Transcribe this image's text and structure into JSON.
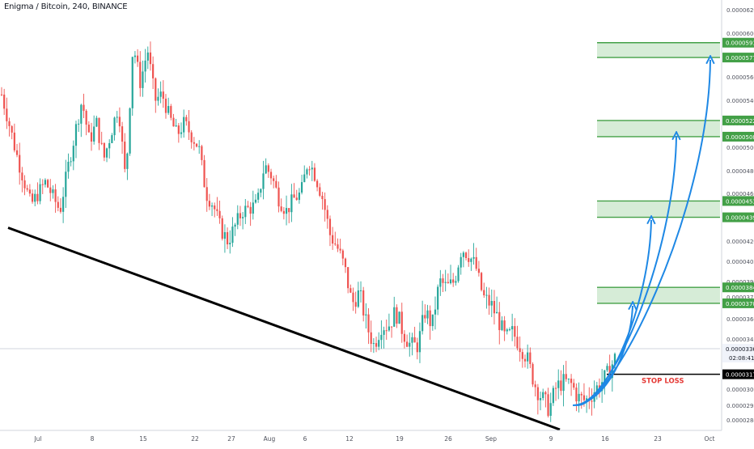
{
  "colors": {
    "up": "#26a69a",
    "down": "#ef5350",
    "zone_fill": "#c8e6c9",
    "zone_border": "#43a047",
    "zone_label_bg": "#43a047",
    "arrow": "#1e88e5",
    "trendline": "#000000",
    "stop_loss_text": "#e53935",
    "gridline": "#e9ecf0",
    "axis_text": "#50535e"
  },
  "chart_data": {
    "type": "candlestick",
    "title": "Enigma / Bitcoin, 240, BINANCE",
    "symbol": "Enigma / Bitcoin",
    "interval": "240",
    "exchange": "BINANCE",
    "x_ticks": [
      "Jul",
      "8",
      "15",
      "22",
      "27",
      "Aug",
      "6",
      "12",
      "19",
      "26",
      "Sep",
      "9",
      "16",
      "23",
      "Oct"
    ],
    "y_ticks": [
      "0.00006200",
      "0.00006000",
      "0.00005800",
      "0.00005600",
      "0.00005400",
      "0.00005200",
      "0.00005000",
      "0.00004800",
      "0.00004600",
      "0.00004400",
      "0.00004200",
      "0.00004050",
      "0.00003900",
      "0.00003750",
      "0.00003600",
      "0.00003450",
      "0.00003300",
      "0.00003200",
      "0.00003060",
      "0.00002950",
      "0.00002840"
    ],
    "y_tick_values": [
      6200,
      6000,
      5800,
      5600,
      5400,
      5200,
      5000,
      4800,
      4600,
      4400,
      4200,
      4050,
      3900,
      3750,
      3600,
      3450,
      3300,
      3200,
      3060,
      2950,
      2840
    ],
    "price_path": [
      [
        0,
        5450
      ],
      [
        2,
        4950
      ],
      [
        4,
        4500
      ],
      [
        6,
        4700
      ],
      [
        8,
        4450
      ],
      [
        9,
        4800
      ],
      [
        11,
        5400
      ],
      [
        12,
        5050
      ],
      [
        13,
        5200
      ],
      [
        14,
        4900
      ],
      [
        16,
        5350
      ],
      [
        17,
        4700
      ],
      [
        18,
        5900
      ],
      [
        19,
        5550
      ],
      [
        20,
        5850
      ],
      [
        21,
        5400
      ],
      [
        22,
        5450
      ],
      [
        23,
        5250
      ],
      [
        24,
        5100
      ],
      [
        25,
        5200
      ],
      [
        27,
        5000
      ],
      [
        28,
        4600
      ],
      [
        29,
        4500
      ],
      [
        30,
        4300
      ],
      [
        31,
        4200
      ],
      [
        33,
        4450
      ],
      [
        35,
        4500
      ],
      [
        36,
        4850
      ],
      [
        37,
        4750
      ],
      [
        38,
        4550
      ],
      [
        39,
        4450
      ],
      [
        40,
        4550
      ],
      [
        41,
        4600
      ],
      [
        42,
        4900
      ],
      [
        43,
        4750
      ],
      [
        44,
        4550
      ],
      [
        45,
        4250
      ],
      [
        46,
        4150
      ],
      [
        47,
        4000
      ],
      [
        48,
        3700
      ],
      [
        49,
        3800
      ],
      [
        50,
        3550
      ],
      [
        51,
        3400
      ],
      [
        52,
        3550
      ],
      [
        53,
        3550
      ],
      [
        54,
        3650
      ],
      [
        55,
        3500
      ],
      [
        56,
        3400
      ],
      [
        57,
        3400
      ],
      [
        58,
        3650
      ],
      [
        59,
        3550
      ],
      [
        60,
        3900
      ],
      [
        61,
        3850
      ],
      [
        62,
        3900
      ],
      [
        63,
        4150
      ],
      [
        64,
        4100
      ],
      [
        65,
        4000
      ],
      [
        66,
        3750
      ],
      [
        67,
        3700
      ],
      [
        68,
        3600
      ],
      [
        69,
        3450
      ],
      [
        70,
        3500
      ],
      [
        71,
        3400
      ],
      [
        72,
        3300
      ],
      [
        73,
        3100
      ],
      [
        74,
        3000
      ],
      [
        75,
        2920
      ],
      [
        76,
        3080
      ],
      [
        77,
        3120
      ],
      [
        78,
        3100
      ],
      [
        79,
        3000
      ],
      [
        80,
        2980
      ],
      [
        81,
        3040
      ],
      [
        82,
        3100
      ],
      [
        83,
        3180
      ],
      [
        84,
        3300
      ]
    ],
    "trendline": {
      "from": [
        0,
        4310
      ],
      "to": [
        84,
        2800
      ]
    },
    "last_price": "0.00003361",
    "countdown": "02:08:41",
    "current_price_tag": "0.00003350",
    "stop_loss": {
      "value": 3177,
      "label": "0.00003177",
      "text": "STOP LOSS"
    },
    "target_zones": [
      {
        "low": 3706,
        "high": 3843,
        "low_label": "0.00003706",
        "high_label": "0.00003843"
      },
      {
        "low": 4396,
        "high": 4535,
        "low_label": "0.00004396",
        "high_label": "0.00004535"
      },
      {
        "low": 5087,
        "high": 5222,
        "low_label": "0.00005087",
        "high_label": "0.00005222"
      },
      {
        "low": 5777,
        "high": 5913,
        "low_label": "0.00005777",
        "high_label": "0.00005913"
      }
    ],
    "projection_arrows": [
      {
        "to_zone": 1
      },
      {
        "to_zone": 2
      },
      {
        "to_zone": 3
      },
      {
        "to_zone": 4
      }
    ],
    "grid": false,
    "legend": "none"
  }
}
